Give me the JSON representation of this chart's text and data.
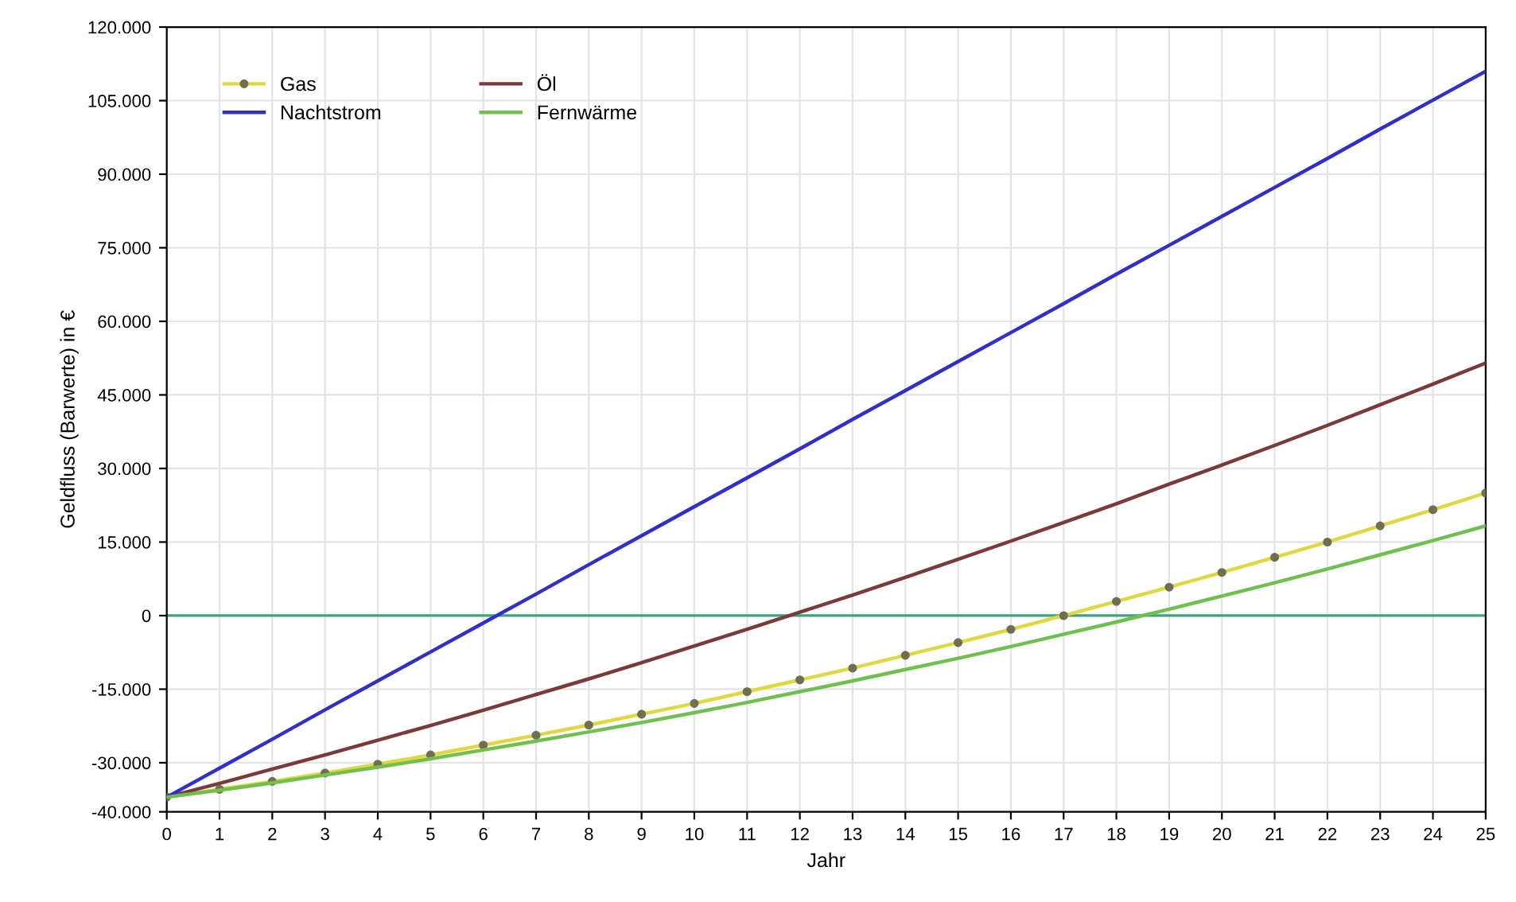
{
  "chart_data": {
    "type": "line",
    "xlabel": "Jahr",
    "ylabel": "Geldfluss (Barwerte) in €",
    "x": [
      0,
      1,
      2,
      3,
      4,
      5,
      6,
      7,
      8,
      9,
      10,
      11,
      12,
      13,
      14,
      15,
      16,
      17,
      18,
      19,
      20,
      21,
      22,
      23,
      24,
      25
    ],
    "series": [
      {
        "name": "Gas",
        "color": "#e0d840",
        "marker": "circle",
        "values": [
          -37000,
          -35400,
          -33800,
          -32100,
          -30300,
          -28400,
          -26400,
          -24400,
          -22300,
          -20100,
          -17900,
          -15500,
          -13100,
          -10700,
          -8100,
          -5500,
          -2800,
          0,
          2900,
          5800,
          8800,
          11900,
          15000,
          18300,
          21600,
          25000
        ]
      },
      {
        "name": "Öl",
        "color": "#7a3a3a",
        "values": [
          -37000,
          -34200,
          -31300,
          -28400,
          -25400,
          -22400,
          -19300,
          -16100,
          -12900,
          -9600,
          -6200,
          -2800,
          700,
          4200,
          7800,
          11500,
          15200,
          19000,
          22800,
          26800,
          30700,
          34700,
          38800,
          43000,
          47200,
          51500
        ]
      },
      {
        "name": "Nachtstrom",
        "color": "#3030c8",
        "values": [
          -37000,
          -31100,
          -25200,
          -19200,
          -13300,
          -7400,
          -1500,
          4400,
          10400,
          16300,
          22200,
          28100,
          34000,
          40000,
          45900,
          51800,
          57700,
          63600,
          69600,
          75500,
          81400,
          87300,
          93200,
          99200,
          105100,
          111000
        ]
      },
      {
        "name": "Fernwärme",
        "color": "#70c050",
        "values": [
          -37000,
          -35600,
          -34100,
          -32500,
          -30900,
          -29200,
          -27400,
          -25600,
          -23700,
          -21800,
          -19800,
          -17700,
          -15500,
          -13300,
          -11000,
          -8700,
          -6300,
          -3800,
          -1300,
          1300,
          4000,
          6700,
          9500,
          12400,
          15300,
          18300
        ]
      }
    ],
    "xlim": [
      0,
      25
    ],
    "xticks": [
      0,
      1,
      2,
      3,
      4,
      5,
      6,
      7,
      8,
      9,
      10,
      11,
      12,
      13,
      14,
      15,
      16,
      17,
      18,
      19,
      20,
      21,
      22,
      23,
      24,
      25
    ],
    "ylim": [
      -40000,
      120000
    ],
    "yticks": [
      {
        "value": -40000,
        "label": "-40.000"
      },
      {
        "value": -30000,
        "label": "-30.000"
      },
      {
        "value": -15000,
        "label": "-15.000"
      },
      {
        "value": 0,
        "label": "0"
      },
      {
        "value": 15000,
        "label": "15.000"
      },
      {
        "value": 30000,
        "label": "30.000"
      },
      {
        "value": 45000,
        "label": "45.000"
      },
      {
        "value": 60000,
        "label": "60.000"
      },
      {
        "value": 75000,
        "label": "75.000"
      },
      {
        "value": 90000,
        "label": "90.000"
      },
      {
        "value": 105000,
        "label": "105.000"
      },
      {
        "value": 120000,
        "label": "120.000"
      }
    ],
    "ref_lines": [
      {
        "axis": "y",
        "value": 0,
        "color": "#40a080"
      }
    ],
    "grid": true,
    "legend": "top left",
    "line_style": "solid"
  }
}
